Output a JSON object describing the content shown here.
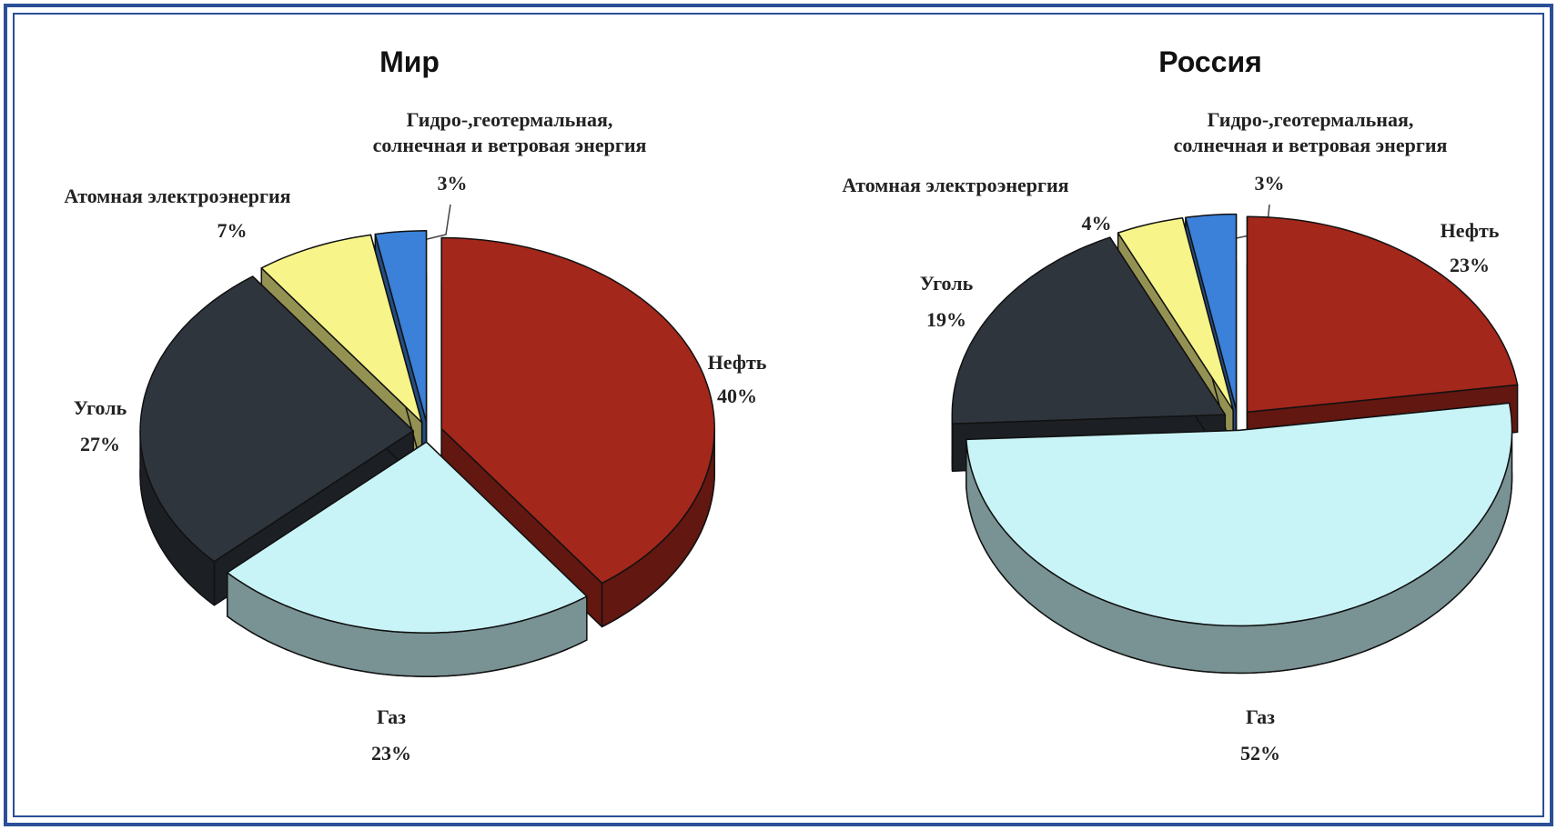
{
  "chart_data": [
    {
      "type": "pie",
      "title": "Мир",
      "categories": [
        "Нефть",
        "Газ",
        "Уголь",
        "Атомная электроэнергия",
        "Гидро-,геотермальная,\nсолнечная и ветровая энергия"
      ],
      "values": [
        40,
        23,
        27,
        7,
        3
      ],
      "value_labels": [
        "40%",
        "23%",
        "27%",
        "7%",
        "3%"
      ],
      "colors": [
        "#a3271b",
        "#c9f4f7",
        "#2f353d",
        "#f7f48a",
        "#3b80d9"
      ]
    },
    {
      "type": "pie",
      "title": "Россия",
      "categories": [
        "Нефть",
        "Газ",
        "Уголь",
        "Атомная электроэнергия",
        "Гидро-,геотермальная,\nсолнечная и ветровая энергия"
      ],
      "values": [
        23,
        52,
        19,
        4,
        3
      ],
      "value_labels": [
        "23%",
        "52%",
        "19%",
        "4%",
        "3%"
      ],
      "colors": [
        "#a3271b",
        "#c9f4f7",
        "#2f353d",
        "#f7f48a",
        "#3b80d9"
      ]
    }
  ]
}
